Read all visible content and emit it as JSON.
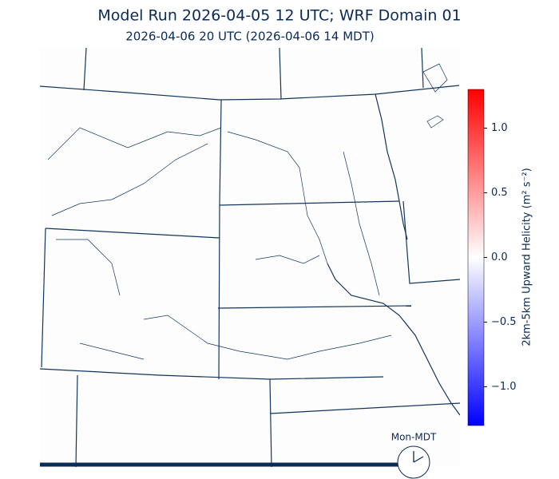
{
  "title": "Model Run 2026-04-05 12 UTC; WRF Domain 01",
  "subtitle": "2026-04-06 20 UTC  (2026-04-06 14 MDT)",
  "colorbar": {
    "label": "2km-5km Upward Helicity (m² s⁻²)",
    "lim": [
      -1.3,
      1.3
    ],
    "ticks": [
      {
        "value": 1.0,
        "label": "1.0"
      },
      {
        "value": 0.5,
        "label": "0.5"
      },
      {
        "value": 0.0,
        "label": "0.0"
      },
      {
        "value": -0.5,
        "label": "−0.5"
      },
      {
        "value": -1.0,
        "label": "−1.0"
      }
    ]
  },
  "clock": {
    "label": "Mon-MDT"
  }
}
